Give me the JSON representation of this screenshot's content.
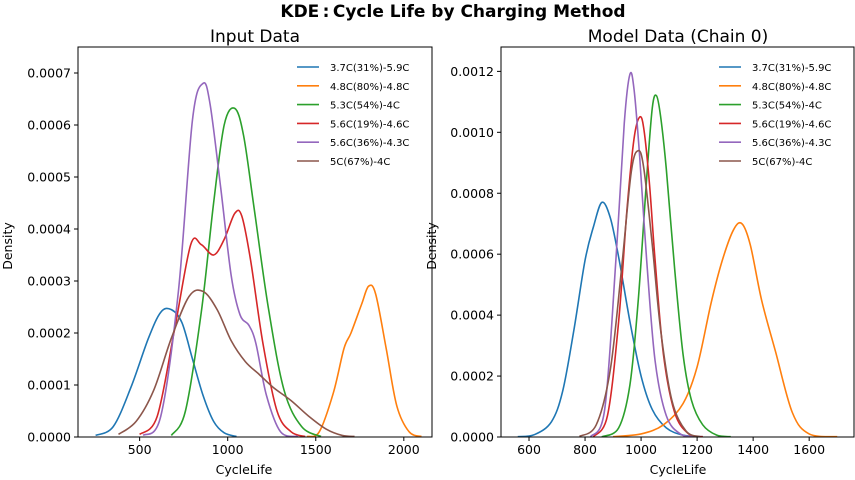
{
  "figure": {
    "title": "KDE : Cycle Life by Charging Method"
  },
  "legend_entries": [
    {
      "label": "3.7C(31%)-5.9C",
      "color": "#1f77b4"
    },
    {
      "label": "4.8C(80%)-4.8C",
      "color": "#ff7f0e"
    },
    {
      "label": "5.3C(54%)-4C",
      "color": "#2ca02c"
    },
    {
      "label": "5.6C(19%)-4.6C",
      "color": "#d62728"
    },
    {
      "label": "5.6C(36%)-4.3C",
      "color": "#9467bd"
    },
    {
      "label": "5C(67%)-4C",
      "color": "#8c564b"
    }
  ],
  "chart_data": [
    {
      "type": "line",
      "title": "Input Data",
      "xlabel": "CycleLife",
      "ylabel": "Density",
      "xlim": [
        150,
        2160
      ],
      "ylim": [
        0,
        0.00075
      ],
      "xticks": [
        500,
        1000,
        1500,
        2000
      ],
      "xticklabels": [
        "500",
        "1000",
        "1500",
        "2000"
      ],
      "yticks": [
        0,
        0.0001,
        0.0002,
        0.0003,
        0.0004,
        0.0005,
        0.0006,
        0.0007
      ],
      "yticklabels": [
        "0.0000",
        "0.0001",
        "0.0002",
        "0.0003",
        "0.0004",
        "0.0005",
        "0.0006",
        "0.0007"
      ],
      "grid": false,
      "legend": "top-right",
      "series": [
        {
          "name": "3.7C(31%)-5.9C",
          "color": "#1f77b4",
          "x": [
            250,
            350,
            450,
            550,
            620,
            680,
            740,
            800,
            860,
            920,
            980,
            1050
          ],
          "y": [
            3e-06,
            2e-05,
            9.5e-05,
            0.00019,
            0.00024,
            0.000245,
            0.00022,
            0.00015,
            8e-05,
            3e-05,
            8e-06,
            1e-06
          ]
        },
        {
          "name": "4.8C(80%)-4.8C",
          "color": "#ff7f0e",
          "x": [
            1450,
            1520,
            1600,
            1660,
            1700,
            1760,
            1800,
            1840,
            1900,
            1960,
            2030,
            2100
          ],
          "y": [
            1e-06,
            1e-05,
            8.5e-05,
            0.00017,
            0.0002,
            0.000255,
            0.00029,
            0.000275,
            0.00017,
            6e-05,
            1e-05,
            1e-06
          ]
        },
        {
          "name": "5.3C(54%)-4C",
          "color": "#2ca02c",
          "x": [
            680,
            760,
            850,
            920,
            980,
            1040,
            1090,
            1150,
            1230,
            1320,
            1420,
            1530
          ],
          "y": [
            3e-06,
            5e-05,
            0.00024,
            0.00045,
            0.0006,
            0.000632,
            0.00058,
            0.00044,
            0.00025,
            9e-05,
            2e-05,
            1e-06
          ]
        },
        {
          "name": "5.6C(19%)-4.6C",
          "color": "#d62728",
          "x": [
            500,
            600,
            700,
            790,
            850,
            920,
            980,
            1040,
            1080,
            1130,
            1200,
            1280,
            1360,
            1440
          ],
          "y": [
            5e-06,
            4e-05,
            0.00021,
            0.00037,
            0.00037,
            0.00035,
            0.00038,
            0.00043,
            0.000425,
            0.00034,
            0.00018,
            5e-05,
            1e-05,
            1e-06
          ]
        },
        {
          "name": "5.6C(36%)-4.3C",
          "color": "#9467bd",
          "x": [
            520,
            620,
            720,
            800,
            860,
            900,
            960,
            1020,
            1070,
            1120,
            1160,
            1220,
            1300,
            1400
          ],
          "y": [
            3e-06,
            4e-05,
            0.00028,
            0.00061,
            0.00068,
            0.00064,
            0.00048,
            0.00031,
            0.000235,
            0.000215,
            0.00018,
            8e-05,
            1e-05,
            1e-06
          ]
        },
        {
          "name": "5C(67%)-4C",
          "color": "#8c564b",
          "x": [
            380,
            480,
            580,
            680,
            780,
            860,
            940,
            1020,
            1100,
            1180,
            1260,
            1360,
            1460,
            1560,
            1650,
            1720
          ],
          "y": [
            5e-06,
            3e-05,
            9e-05,
            0.00019,
            0.00027,
            0.00028,
            0.000245,
            0.000185,
            0.000145,
            0.00012,
            9.5e-05,
            7e-05,
            4e-05,
            1.5e-05,
            3e-06,
            1e-06
          ]
        }
      ]
    },
    {
      "type": "line",
      "title": "Model Data (Chain 0)",
      "xlabel": "CycleLife",
      "ylabel": "Density",
      "xlim": [
        500,
        1760
      ],
      "ylim": [
        0,
        0.00128
      ],
      "xticks": [
        600,
        800,
        1000,
        1200,
        1400,
        1600
      ],
      "xticklabels": [
        "600",
        "800",
        "1000",
        "1200",
        "1400",
        "1600"
      ],
      "yticks": [
        0,
        0.0002,
        0.0004,
        0.0006,
        0.0008,
        0.001,
        0.0012
      ],
      "yticklabels": [
        "0.0000",
        "0.0002",
        "0.0004",
        "0.0006",
        "0.0008",
        "0.0010",
        "0.0012"
      ],
      "grid": false,
      "legend": "top-right",
      "series": [
        {
          "name": "3.7C(31%)-5.9C",
          "color": "#1f77b4",
          "x": [
            560,
            620,
            680,
            720,
            760,
            800,
            830,
            860,
            890,
            920,
            960,
            1000,
            1040,
            1090,
            1150,
            1220
          ],
          "y": [
            1e-06,
            8e-06,
            5e-05,
            0.00015,
            0.00035,
            0.00058,
            0.00069,
            0.00077,
            0.00072,
            0.00059,
            0.00038,
            0.0002,
            9e-05,
            3e-05,
            6e-06,
            1e-06
          ]
        },
        {
          "name": "4.8C(80%)-4.8C",
          "color": "#ff7f0e",
          "x": [
            900,
            1000,
            1080,
            1150,
            1200,
            1250,
            1290,
            1330,
            1360,
            1390,
            1430,
            1480,
            1540,
            1600,
            1700
          ],
          "y": [
            1e-06,
            1e-05,
            4e-05,
            0.00011,
            0.00023,
            0.00044,
            0.00058,
            0.00068,
            0.0007,
            0.00063,
            0.00045,
            0.00028,
            8e-05,
            1e-05,
            1e-06
          ]
        },
        {
          "name": "5.3C(54%)-4C",
          "color": "#2ca02c",
          "x": [
            860,
            920,
            960,
            990,
            1020,
            1040,
            1055,
            1070,
            1090,
            1120,
            1150,
            1180,
            1220,
            1270,
            1320
          ],
          "y": [
            1e-06,
            3e-05,
            0.00017,
            0.00045,
            0.00085,
            0.00108,
            0.00112,
            0.00105,
            0.00088,
            0.00055,
            0.00027,
            0.00012,
            4e-05,
            6e-06,
            1e-06
          ]
        },
        {
          "name": "5.6C(19%)-4.6C",
          "color": "#d62728",
          "x": [
            830,
            880,
            920,
            950,
            975,
            995,
            1010,
            1030,
            1050,
            1080,
            1120,
            1170,
            1220
          ],
          "y": [
            1e-06,
            7e-05,
            0.00038,
            0.00075,
            0.00098,
            0.00105,
            0.00101,
            0.00083,
            0.00058,
            0.00027,
            8e-05,
            1e-05,
            1e-06
          ]
        },
        {
          "name": "5.6C(36%)-4.3C",
          "color": "#9467bd",
          "x": [
            820,
            870,
            910,
            940,
            960,
            975,
            995,
            1020,
            1050,
            1090,
            1140,
            1190
          ],
          "y": [
            1e-06,
            9e-05,
            0.00058,
            0.00103,
            0.00119,
            0.00114,
            0.00092,
            0.00058,
            0.00025,
            7e-05,
            1e-05,
            1e-06
          ]
        },
        {
          "name": "5C(67%)-4C",
          "color": "#8c564b",
          "x": [
            780,
            840,
            890,
            930,
            965,
            990,
            1010,
            1040,
            1070,
            1110,
            1160,
            1210
          ],
          "y": [
            2e-06,
            4e-05,
            0.00022,
            0.00055,
            0.00087,
            0.00094,
            0.00088,
            0.00063,
            0.00035,
            0.00012,
            2e-05,
            1e-06
          ]
        }
      ]
    }
  ]
}
